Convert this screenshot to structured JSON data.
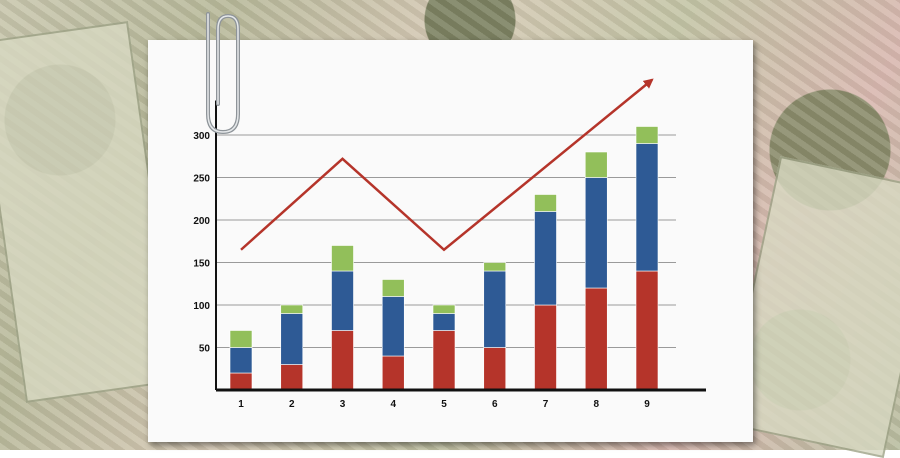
{
  "chart_data": {
    "type": "bar",
    "stacked": true,
    "categories": [
      "1",
      "2",
      "3",
      "4",
      "5",
      "6",
      "7",
      "8",
      "9"
    ],
    "series": [
      {
        "color": "#b5342a",
        "values": [
          20,
          30,
          70,
          40,
          70,
          50,
          100,
          120,
          140
        ]
      },
      {
        "color": "#2e5a95",
        "values": [
          30,
          60,
          70,
          70,
          20,
          90,
          110,
          130,
          150
        ]
      },
      {
        "color": "#92bf5a",
        "values": [
          20,
          10,
          30,
          20,
          10,
          10,
          20,
          30,
          20
        ]
      }
    ],
    "trend_line": {
      "color": "#b5342a",
      "x": [
        1,
        3,
        5,
        9.1
      ],
      "y": [
        165,
        272,
        165,
        365
      ],
      "arrow": true
    },
    "yticks": [
      50,
      100,
      150,
      200,
      250,
      300
    ],
    "ylim": [
      0,
      350
    ],
    "grid": true,
    "title": "",
    "xlabel": "",
    "ylabel": ""
  }
}
